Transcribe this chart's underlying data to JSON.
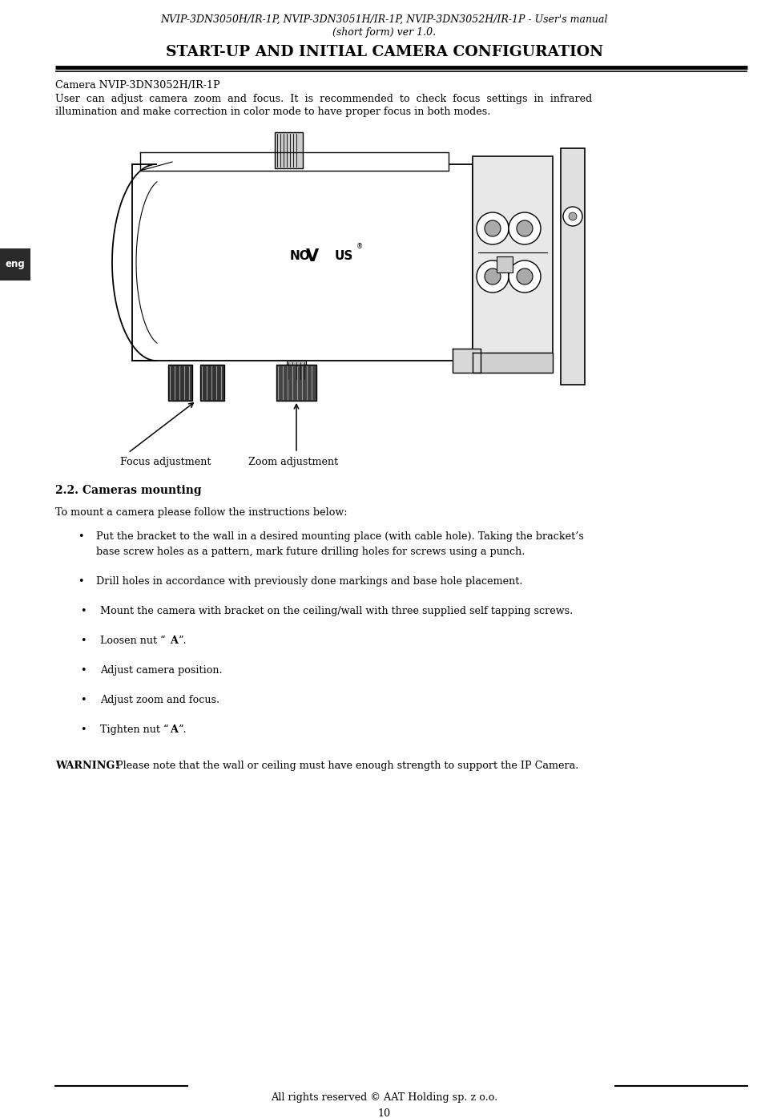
{
  "bg_color": "#ffffff",
  "header_line1": "NVIP-3DN3050H/IR-1P, NVIP-3DN3051H/IR-1P, NVIP-3DN3052H/IR-1P - User's manual",
  "header_line2": "(short form) ver 1.0.",
  "section_title": "START-UP AND INITIAL CAMERA CONFIGURATION",
  "camera_model": "Camera NVIP-3DN3052H/IR-1P",
  "body_text_line1": "User  can  adjust  camera  zoom  and  focus.  It  is  recommended  to  check  focus  settings  in  infrared",
  "body_text_line2": "illumination and make correction in color mode to have proper focus in both modes.",
  "caption_focus": "Focus adjustment",
  "caption_zoom": "Zoom adjustment",
  "section2_title": "2.2. Cameras mounting",
  "intro_text": "To mount a camera please follow the instructions below:",
  "bullet1a": "Put the bracket to the wall in a desired mounting place (with cable hole). Taking the bracket’s",
  "bullet1b": "base screw holes as a pattern, mark future drilling holes for screws using a punch.",
  "bullet2": "Drill holes in accordance with previously done markings and base hole placement.",
  "bullet3": "Mount the camera with bracket on the ceiling/wall with three supplied self tapping screws.",
  "bullet4_pre": "Loosen nut “",
  "bullet4_bold": "A",
  "bullet4_post": "”.",
  "bullet5": "Adjust camera position.",
  "bullet6": "Adjust zoom and focus.",
  "bullet7_pre": "Tighten nut “",
  "bullet7_bold": "A",
  "bullet7_post": "”.",
  "warning_bold": "WARNING!",
  "warning_text": " Please note that the wall or ceiling must have enough strength to support the IP Camera.",
  "footer_text": "All rights reserved © AAT Holding sp. z o.o.",
  "page_number": "10",
  "eng_label": "eng",
  "lm": 0.072,
  "rm": 0.972,
  "indent1": 0.105,
  "indent2": 0.125,
  "bullet_col1": 0.088,
  "bullet_col2": 0.108
}
